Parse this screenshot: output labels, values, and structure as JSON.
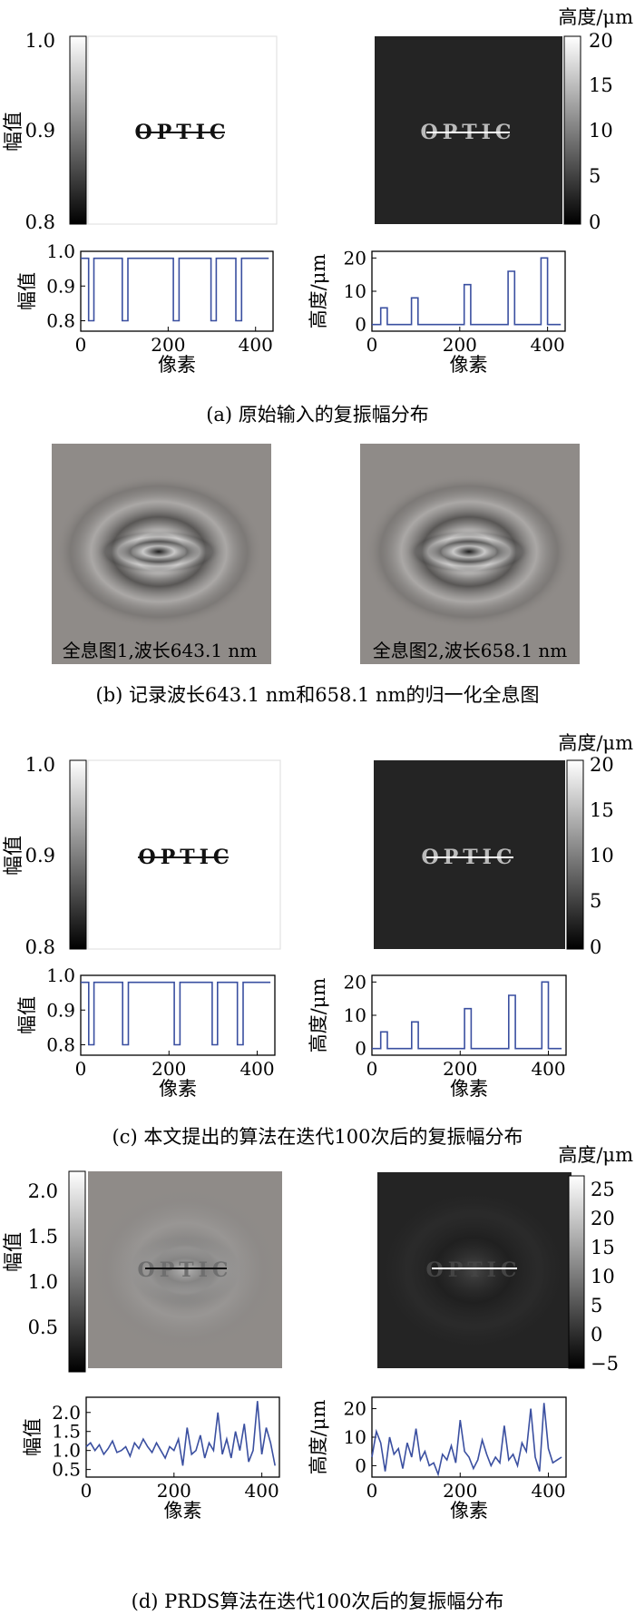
{
  "colors": {
    "line": "#3a4fa0",
    "dark_panel": "#242424",
    "holo_bg": "#8f8b88"
  },
  "panels": {
    "a": {
      "caption": "(a) 原始输入的复振幅分布",
      "colorbar_amp": {
        "label": "幅值",
        "ticks": [
          "1.0",
          "0.9",
          "0.8"
        ]
      },
      "colorbar_height": {
        "label": "高度/μm",
        "ticks": [
          "20",
          "15",
          "10",
          "5",
          "0"
        ]
      },
      "word": "OPTIC"
    },
    "b": {
      "caption": "(b) 记录波长643.1 nm和658.1 nm的归一化全息图",
      "holo1_label": "全息图1,波长643.1 nm",
      "holo2_label": "全息图2,波长658.1 nm"
    },
    "c": {
      "caption": "(c) 本文提出的算法在迭代100次后的复振幅分布",
      "colorbar_amp": {
        "label": "幅值",
        "ticks": [
          "1.0",
          "0.9",
          "0.8"
        ]
      },
      "colorbar_height": {
        "label": "高度/μm",
        "ticks": [
          "20",
          "15",
          "10",
          "5",
          "0"
        ]
      },
      "word": "OPTIC"
    },
    "d": {
      "caption": "(d) PRDS算法在迭代100次后的复振幅分布",
      "colorbar_amp": {
        "label": "幅值",
        "ticks": [
          "2.0",
          "1.5",
          "1.0",
          "0.5"
        ]
      },
      "colorbar_height": {
        "label": "高度/μm",
        "ticks": [
          "25",
          "20",
          "15",
          "10",
          "5",
          "0",
          "−5"
        ]
      },
      "word": "OPTIC"
    }
  },
  "chart_data": [
    {
      "id": "a_amp",
      "type": "line",
      "xlabel": "像素",
      "ylabel": "幅值",
      "xlim": [
        0,
        440
      ],
      "ylim": [
        0.77,
        1.0
      ],
      "xticks": [
        0,
        200,
        400
      ],
      "yticks": [
        "1.0",
        "0.9",
        "0.8"
      ],
      "x": [
        0,
        18,
        18,
        30,
        30,
        95,
        95,
        108,
        108,
        212,
        212,
        225,
        225,
        298,
        298,
        310,
        310,
        355,
        355,
        368,
        368,
        430
      ],
      "y": [
        0.98,
        0.98,
        0.8,
        0.8,
        0.98,
        0.98,
        0.8,
        0.8,
        0.98,
        0.98,
        0.8,
        0.8,
        0.98,
        0.98,
        0.8,
        0.8,
        0.98,
        0.98,
        0.8,
        0.8,
        0.98,
        0.98
      ]
    },
    {
      "id": "a_height",
      "type": "line",
      "xlabel": "像素",
      "ylabel": "高度/μm",
      "xlim": [
        0,
        440
      ],
      "ylim": [
        -2,
        22
      ],
      "xticks": [
        0,
        200,
        400
      ],
      "yticks": [
        "20",
        "10",
        "0"
      ],
      "x": [
        0,
        20,
        20,
        35,
        35,
        90,
        90,
        105,
        105,
        210,
        210,
        225,
        225,
        310,
        310,
        325,
        325,
        385,
        385,
        400,
        400,
        430
      ],
      "y": [
        0,
        0,
        5,
        5,
        0,
        0,
        8,
        8,
        0,
        0,
        12,
        12,
        0,
        0,
        16,
        16,
        0,
        0,
        20,
        20,
        0,
        0
      ]
    },
    {
      "id": "c_amp",
      "type": "line",
      "xlabel": "像素",
      "ylabel": "幅值",
      "xlim": [
        0,
        440
      ],
      "ylim": [
        0.77,
        1.0
      ],
      "xticks": [
        0,
        200,
        400
      ],
      "yticks": [
        "1.0",
        "0.9",
        "0.8"
      ],
      "x": [
        0,
        18,
        18,
        30,
        30,
        95,
        95,
        108,
        108,
        212,
        212,
        225,
        225,
        298,
        298,
        310,
        310,
        355,
        355,
        368,
        368,
        430
      ],
      "y": [
        0.98,
        0.98,
        0.8,
        0.8,
        0.98,
        0.98,
        0.8,
        0.8,
        0.98,
        0.98,
        0.8,
        0.8,
        0.98,
        0.98,
        0.8,
        0.8,
        0.98,
        0.98,
        0.8,
        0.8,
        0.98,
        0.98
      ]
    },
    {
      "id": "c_height",
      "type": "line",
      "xlabel": "像素",
      "ylabel": "高度/μm",
      "xlim": [
        0,
        440
      ],
      "ylim": [
        -2,
        22
      ],
      "xticks": [
        0,
        200,
        400
      ],
      "yticks": [
        "20",
        "10",
        "0"
      ],
      "x": [
        0,
        20,
        20,
        35,
        35,
        90,
        90,
        105,
        105,
        210,
        210,
        225,
        225,
        310,
        310,
        325,
        325,
        385,
        385,
        400,
        400,
        430
      ],
      "y": [
        0,
        0,
        5,
        5,
        0,
        0,
        8,
        8,
        0,
        0,
        12,
        12,
        0,
        0,
        16,
        16,
        0,
        0,
        20,
        20,
        0,
        0
      ]
    },
    {
      "id": "d_amp",
      "type": "line",
      "xlabel": "像素",
      "ylabel": "幅值",
      "xlim": [
        0,
        440
      ],
      "ylim": [
        0.3,
        2.4
      ],
      "xticks": [
        0,
        200,
        400
      ],
      "yticks": [
        "2.0",
        "1.5",
        "1.0",
        "0.5"
      ],
      "x": [
        0,
        10,
        20,
        30,
        40,
        50,
        60,
        70,
        80,
        90,
        100,
        110,
        120,
        130,
        140,
        150,
        160,
        170,
        180,
        190,
        200,
        210,
        220,
        230,
        240,
        250,
        260,
        270,
        280,
        290,
        300,
        310,
        320,
        330,
        340,
        350,
        360,
        370,
        380,
        390,
        400,
        410,
        420,
        430
      ],
      "y": [
        1.1,
        1.2,
        1.0,
        1.15,
        0.9,
        1.05,
        1.25,
        0.95,
        1.0,
        1.1,
        0.85,
        1.2,
        1.05,
        1.3,
        1.1,
        0.95,
        1.2,
        1.0,
        0.8,
        1.1,
        1.0,
        1.3,
        0.6,
        1.6,
        0.9,
        1.0,
        1.4,
        0.8,
        1.2,
        1.0,
        2.0,
        0.9,
        1.3,
        0.8,
        1.5,
        1.0,
        1.7,
        0.7,
        1.0,
        2.3,
        0.9,
        1.6,
        1.2,
        0.6
      ]
    },
    {
      "id": "d_height",
      "type": "line",
      "xlabel": "像素",
      "ylabel": "高度/μm",
      "xlim": [
        0,
        440
      ],
      "ylim": [
        -4,
        24
      ],
      "xticks": [
        0,
        200,
        400
      ],
      "yticks": [
        "20",
        "10",
        "0"
      ],
      "x": [
        0,
        10,
        20,
        30,
        40,
        50,
        60,
        70,
        80,
        90,
        100,
        110,
        120,
        130,
        140,
        150,
        160,
        170,
        180,
        190,
        200,
        210,
        220,
        230,
        240,
        250,
        260,
        270,
        280,
        290,
        300,
        310,
        320,
        330,
        340,
        350,
        360,
        370,
        380,
        390,
        400,
        410,
        420,
        430
      ],
      "y": [
        3,
        12,
        8,
        -2,
        10,
        4,
        6,
        -1,
        8,
        3,
        13,
        2,
        5,
        0,
        1,
        -3,
        4,
        2,
        7,
        1,
        16,
        5,
        3,
        -1,
        2,
        9,
        4,
        0,
        3,
        1,
        14,
        2,
        4,
        0,
        8,
        5,
        20,
        3,
        -2,
        22,
        6,
        1,
        2,
        3
      ]
    }
  ]
}
